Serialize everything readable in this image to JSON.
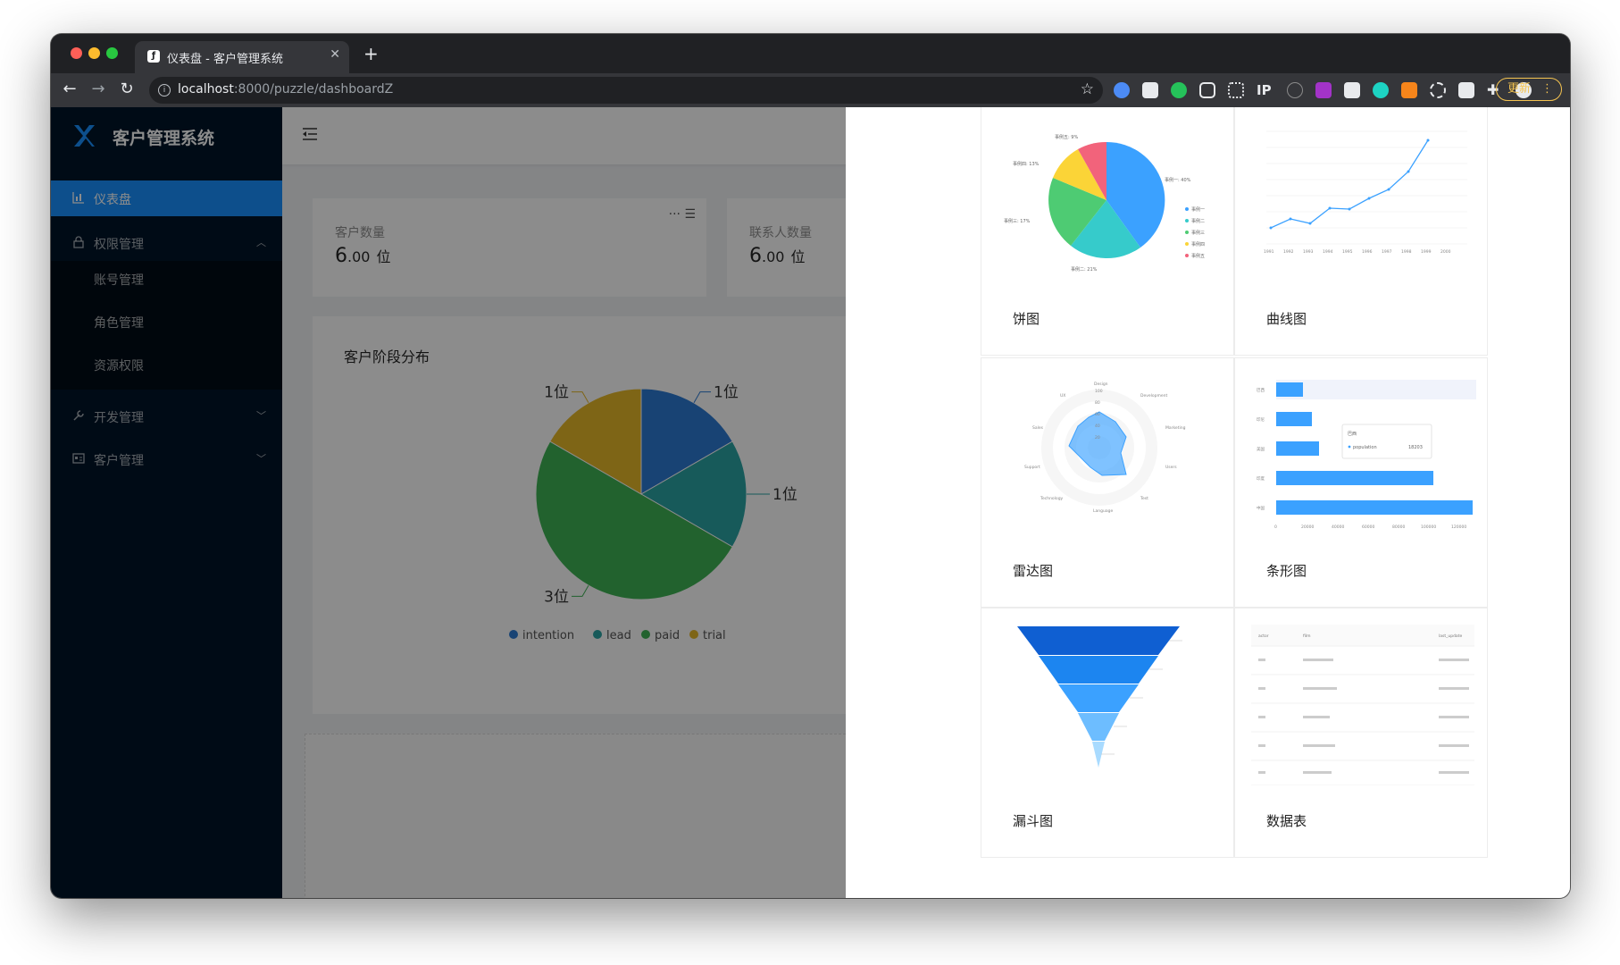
{
  "browser": {
    "tab_title": "仪表盘 - 客户管理系统",
    "url_host": "localhost",
    "url_path": ":8000/puzzle/dashboardZ",
    "update_label": "更新",
    "extensions": [
      "#4c8bf5",
      "#ffffff",
      "#25c25a",
      "#ffffff",
      "#ffffff",
      "IP",
      "#8a8a8a",
      "#a333c8",
      "#ffffff",
      "#1dd3c3",
      "#f6851b",
      "#ffffff",
      "#ffffff",
      "#ffffff",
      "#ffffff"
    ]
  },
  "sidebar": {
    "app_title": "客户管理系统",
    "items": [
      {
        "label": "仪表盘",
        "icon": "chart-icon",
        "active": true
      },
      {
        "label": "权限管理",
        "icon": "lock-icon",
        "expanded": true
      },
      {
        "label": "开发管理",
        "icon": "wrench-icon"
      },
      {
        "label": "客户管理",
        "icon": "contact-card-icon"
      }
    ],
    "subitems": [
      "账号管理",
      "角色管理",
      "资源权限"
    ]
  },
  "dashboard": {
    "stats": [
      {
        "label": "客户数量",
        "value": "6",
        "decimals": ".00",
        "unit": "位"
      },
      {
        "label": "联系人数量",
        "value": "6",
        "decimals": ".00",
        "unit": "位"
      }
    ],
    "pie_title": "客户阶段分布"
  },
  "chart_data": [
    {
      "type": "pie",
      "title": "客户阶段分布",
      "categories": [
        "intention",
        "lead",
        "paid",
        "trial"
      ],
      "values": [
        1,
        1,
        3,
        1
      ],
      "data_labels": [
        "1位",
        "1位",
        "3位",
        "1位"
      ],
      "colors": [
        "#2d7bd3",
        "#2aa4a4",
        "#3fb355",
        "#e6b829"
      ],
      "legend": "bottom"
    }
  ],
  "drawer": {
    "widgets": [
      {
        "label": "饼图",
        "pie_labels": [
          "事例一: 40%",
          "事例二: 21%",
          "事例三: 17%",
          "事例四: 13%",
          "事例五: 9%"
        ],
        "legend": [
          "事例一",
          "事例二",
          "事例三",
          "事例四",
          "事例五"
        ]
      },
      {
        "label": "曲线图",
        "x": [
          "1991",
          "1992",
          "1993",
          "1994",
          "1995",
          "1996",
          "1997",
          "1998",
          "1999",
          "2000"
        ]
      },
      {
        "label": "雷达图",
        "axes": [
          "Design",
          "Development",
          "Marketing",
          "Users",
          "Test",
          "Language",
          "Technology",
          "Support",
          "Sales",
          "UX"
        ],
        "ticks": [
          "100",
          "80",
          "60",
          "40",
          "20"
        ]
      },
      {
        "label": "条形图",
        "categories": [
          "巴西",
          "印尼",
          "美国",
          "印度",
          "中国"
        ],
        "xticks": [
          "0",
          "20000",
          "40000",
          "60000",
          "80000",
          "100000",
          "120000"
        ],
        "tooltip_title": "巴西",
        "tooltip_series": "population",
        "tooltip_value": "18203"
      },
      {
        "label": "漏斗图"
      },
      {
        "label": "数据表",
        "columns": [
          "actor",
          "film",
          "last_update"
        ]
      }
    ]
  }
}
